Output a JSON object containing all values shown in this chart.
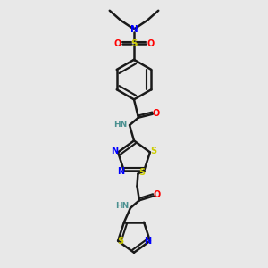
{
  "bg_color": "#e8e8e8",
  "line_color": "#1a1a1a",
  "bond_lw": 1.8,
  "colors": {
    "N": "#0000ff",
    "S": "#cccc00",
    "O": "#ff0000",
    "C": "#1a1a1a",
    "H": "#4a9090"
  },
  "font_size": 7.0,
  "fig_size": [
    3.0,
    3.0
  ],
  "dpi": 100
}
